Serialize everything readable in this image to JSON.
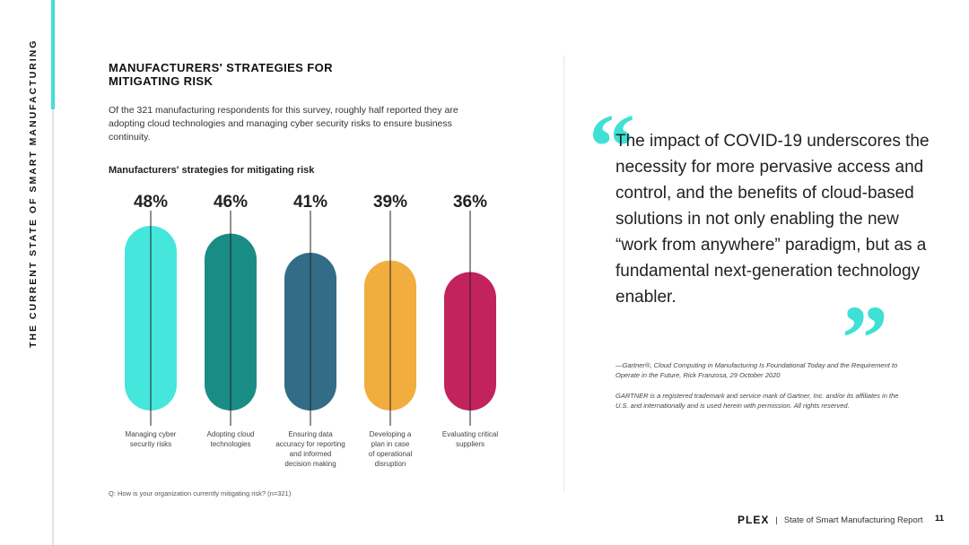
{
  "side_label": "THE CURRENT STATE OF SMART MANUFACTURING",
  "section_title": "MANUFACTURERS' STRATEGIES FOR MITIGATING RISK",
  "intro": "Of the 321 manufacturing respondents for this survey, roughly half reported they are adopting cloud technologies and managing cyber security risks to ensure business continuity.",
  "chart_title": "Manufacturers' strategies for mitigating risk",
  "chart_data": {
    "type": "bar",
    "title": "Manufacturers' strategies for mitigating risk",
    "categories": [
      "Managing cyber security risks",
      "Adopting cloud technologies",
      "Ensuring data accuracy for reporting and informed decision making",
      "Developing a plan in case of operational disruption",
      "Evaluating critical suppliers"
    ],
    "category_lines": [
      [
        "Managing cyber",
        "security risks"
      ],
      [
        "Adopting cloud",
        "technologies"
      ],
      [
        "Ensuring data",
        "accuracy for reporting",
        "and informed",
        "decision making"
      ],
      [
        "Developing a",
        "plan in case",
        "of operational",
        "disruption"
      ],
      [
        "Evaluating critical",
        "suppliers"
      ]
    ],
    "values": [
      48,
      46,
      41,
      39,
      36
    ],
    "value_labels": [
      "48%",
      "46%",
      "41%",
      "39%",
      "36%"
    ],
    "colors": [
      "#45e6dc",
      "#1a8c86",
      "#336c87",
      "#f1ad3e",
      "#c2235c"
    ],
    "unit": "%",
    "xlabel": "",
    "ylabel": ""
  },
  "footnote": "Q: How is your organization currently mitigating risk? (n=321)",
  "quote": {
    "open_mark": "“",
    "close_mark": "”",
    "text": "The impact of COVID-19 underscores the necessity for more pervasive access and control, and the benefits of cloud-based solutions in not only enabling the new “work from anywhere” paradigm, but as a fundamental next-generation technology enabler.",
    "attribution": "—Gartner®, Cloud Computing in Manufacturing Is Foundational Today and the Requirement to Operate in the Future, Rick Franzosa, 29 October 2020",
    "disclaimer": "GARTNER is a registered trademark and service mark of Gartner, Inc. and/or its affiliates in the U.S. and internationally and is used herein with permission. All rights reserved."
  },
  "footer": {
    "brand": "PLEX",
    "separator": "|",
    "report": "State of Smart Manufacturing Report",
    "page_number": "11"
  },
  "colors": {
    "accent": "#3fe0d5"
  }
}
